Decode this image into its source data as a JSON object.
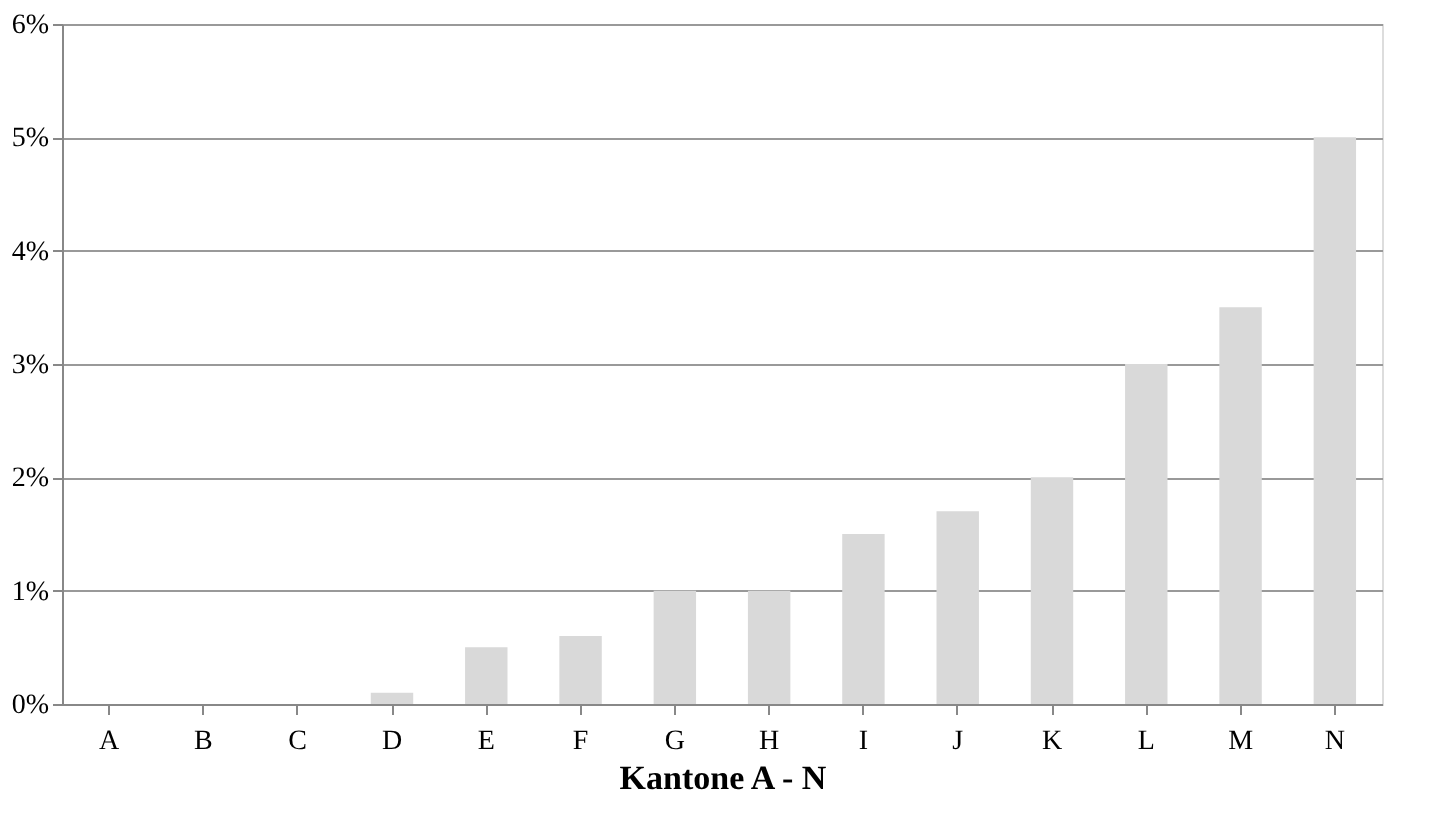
{
  "chart_data": {
    "type": "bar",
    "xlabel": "Kantone A - N",
    "categories": [
      "A",
      "B",
      "C",
      "D",
      "E",
      "F",
      "G",
      "H",
      "I",
      "J",
      "K",
      "L",
      "M",
      "N"
    ],
    "values": [
      0,
      0,
      0,
      0.1,
      0.5,
      0.6,
      1.0,
      1.0,
      1.5,
      1.7,
      2.0,
      3.0,
      3.5,
      5.0
    ],
    "color": "#d9d9d9",
    "ylim": [
      0,
      6
    ],
    "yticks": [
      {
        "value": 0,
        "label": "0%"
      },
      {
        "value": 1,
        "label": "1%"
      },
      {
        "value": 2,
        "label": "2%"
      },
      {
        "value": 3,
        "label": "3%"
      },
      {
        "value": 4,
        "label": "4%"
      },
      {
        "value": 5,
        "label": "5%"
      },
      {
        "value": 6,
        "label": "6%"
      }
    ],
    "grid": "y"
  }
}
